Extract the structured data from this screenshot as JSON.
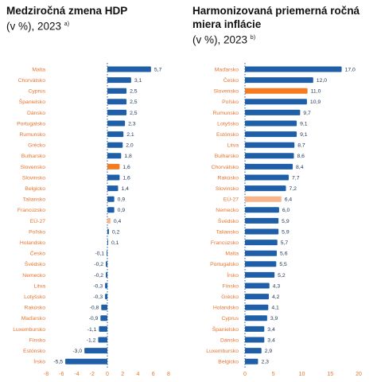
{
  "chart_data": [
    {
      "type": "bar",
      "orientation": "horizontal",
      "title": "Medziročná zmena HDP",
      "subtitle": "(v %), 2023",
      "note_mark": "a)",
      "categories": [
        "Malta",
        "Chorvátsko",
        "Cyprus",
        "Španielsko",
        "Dánsko",
        "Portugalsko",
        "Rumunsko",
        "Grécko",
        "Bulharsko",
        "Slovensko",
        "Slovinsko",
        "Belgicko",
        "Taliansko",
        "Francúzsko",
        "EÚ-27",
        "Poľsko",
        "Holandsko",
        "Česko",
        "Švédsko",
        "Nemecko",
        "Litva",
        "Lotyšsko",
        "Rakúsko",
        "Maďarsko",
        "Luxembursko",
        "Fínsko",
        "Estónsko",
        "Írsko"
      ],
      "value_labels": [
        "5,7",
        "3,1",
        "2,5",
        "2,5",
        "2,5",
        "2,3",
        "2,1",
        "2,0",
        "1,8",
        "1,6",
        "1,6",
        "1,4",
        "0,9",
        "0,9",
        "0,4",
        "0,2",
        "0,1",
        "-0,1",
        "-0,2",
        "-0,2",
        "-0,3",
        "-0,3",
        "-0,8",
        "-0,9",
        "-1,1",
        "-1,2",
        "-3,0",
        "-5,5"
      ],
      "values": [
        5.7,
        3.1,
        2.5,
        2.5,
        2.5,
        2.3,
        2.1,
        2.0,
        1.8,
        1.6,
        1.6,
        1.4,
        0.9,
        0.9,
        0.4,
        0.2,
        0.1,
        -0.1,
        -0.2,
        -0.2,
        -0.3,
        -0.3,
        -0.8,
        -0.9,
        -1.1,
        -1.2,
        -3.0,
        -5.5
      ],
      "highlight": {
        "Slovensko": "orange",
        "EÚ-27": "light-orange"
      },
      "xlim": [
        -8,
        8
      ],
      "xticks": [
        "-8",
        "-6",
        "-4",
        "-2",
        "0",
        "2",
        "4",
        "6",
        "8"
      ]
    },
    {
      "type": "bar",
      "orientation": "horizontal",
      "title": "Harmonizovaná priemerná ročná miera inflácie",
      "subtitle": "(v %), 2023",
      "note_mark": "b)",
      "categories": [
        "Maďarsko",
        "Česko",
        "Slovensko",
        "Poľsko",
        "Rumunsko",
        "Lotyšsko",
        "Estónsko",
        "Litva",
        "Bulharsko",
        "Chorvátsko",
        "Rakúsko",
        "Slovinsko",
        "EÚ-27",
        "Nemecko",
        "Švédsko",
        "Taliansko",
        "Francúzsko",
        "Malta",
        "Portugalsko",
        "Írsko",
        "Fínsko",
        "Grécko",
        "Holandsko",
        "Cyprus",
        "Španielsko",
        "Dánsko",
        "Luxembursko",
        "Belgicko"
      ],
      "value_labels": [
        "17,0",
        "12,0",
        "11,0",
        "10,9",
        "9,7",
        "9,1",
        "9,1",
        "8,7",
        "8,6",
        "8,4",
        "7,7",
        "7,2",
        "6,4",
        "6,0",
        "5,9",
        "5,9",
        "5,7",
        "5,6",
        "5,5",
        "5,2",
        "4,3",
        "4,2",
        "4,1",
        "3,9",
        "3,4",
        "3,4",
        "2,9",
        "2,3"
      ],
      "values": [
        17.0,
        12.0,
        11.0,
        10.9,
        9.7,
        9.1,
        9.1,
        8.7,
        8.6,
        8.4,
        7.7,
        7.2,
        6.4,
        6.0,
        5.9,
        5.9,
        5.7,
        5.6,
        5.5,
        5.2,
        4.3,
        4.2,
        4.1,
        3.9,
        3.4,
        3.4,
        2.9,
        2.3
      ],
      "highlight": {
        "Slovensko": "orange",
        "EÚ-27": "light-orange"
      },
      "xlim": [
        0,
        20
      ],
      "xticks": [
        "0",
        "5",
        "10",
        "15",
        "20"
      ]
    }
  ],
  "colors": {
    "bar": "#1f5fa8",
    "highlight": "#f47b20",
    "eu": "#f6b48a",
    "category_text": "#e8742e",
    "value_text": "#1d3557",
    "axis": "#1f5fa8"
  },
  "icons": {
    "vertical_axis": "dotted-vertical-line"
  }
}
